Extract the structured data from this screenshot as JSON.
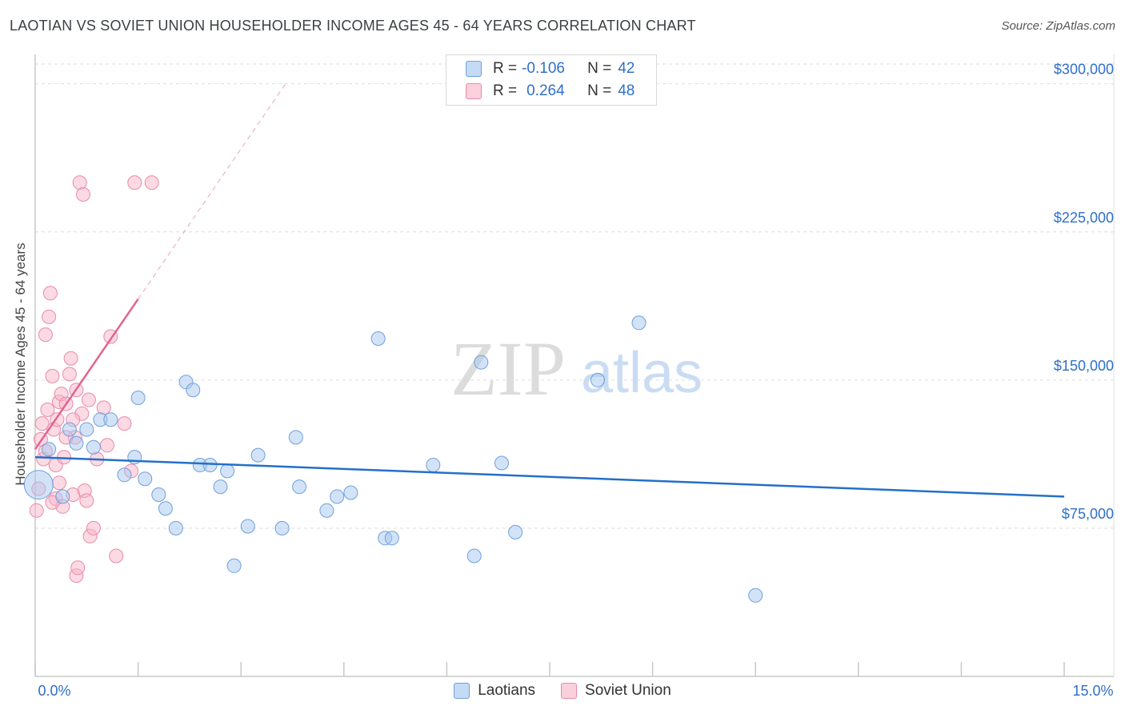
{
  "title": "LAOTIAN VS SOVIET UNION HOUSEHOLDER INCOME AGES 45 - 64 YEARS CORRELATION CHART",
  "source": "Source: ZipAtlas.com",
  "watermark": {
    "zip": "ZIP",
    "atlas": "atlas"
  },
  "colors": {
    "blue_fill": "#a8c8f0",
    "blue_stroke": "#6fa0dc",
    "blue_line": "#2370c8",
    "pink_fill": "#f7b6c9",
    "pink_stroke": "#e98aa8",
    "pink_line": "#e0648f",
    "axis_text": "#2f6fc9",
    "grid": "#dedede"
  },
  "legend": {
    "rows": [
      {
        "r_label": "R =",
        "r_value": "-0.106",
        "n_label": "N =",
        "n_value": "42"
      },
      {
        "r_label": "R =",
        "r_value": "0.264",
        "n_label": "N =",
        "n_value": "48"
      }
    ]
  },
  "bottom_legend": {
    "laotians": "Laotians",
    "soviet": "Soviet Union"
  },
  "chart_data": {
    "type": "scatter",
    "title": "LAOTIAN VS SOVIET UNION HOUSEHOLDER INCOME AGES 45 - 64 YEARS CORRELATION CHART",
    "xlabel": "",
    "ylabel": "Householder Income Ages 45 - 64 years",
    "xlim": [
      0,
      15
    ],
    "ylim": [
      0,
      310000
    ],
    "x_tick_labels": {
      "min": "0.0%",
      "max": "15.0%"
    },
    "y_ticks": [
      {
        "value": 75000,
        "label": "$75,000"
      },
      {
        "value": 150000,
        "label": "$150,000"
      },
      {
        "value": 225000,
        "label": "$225,000"
      },
      {
        "value": 300000,
        "label": "$300,000"
      }
    ],
    "series": [
      {
        "name": "Laotians",
        "color": "blue",
        "r": -0.106,
        "n": 42,
        "trend": {
          "x0": 0.0,
          "y0": 111000,
          "x1": 15.0,
          "y1": 91000
        },
        "points": [
          [
            0.05,
            97000
          ],
          [
            0.2,
            115000
          ],
          [
            0.5,
            125000
          ],
          [
            0.6,
            118000
          ],
          [
            0.75,
            125000
          ],
          [
            0.85,
            116000
          ],
          [
            0.95,
            130000
          ],
          [
            1.1,
            130000
          ],
          [
            1.3,
            102000
          ],
          [
            1.45,
            111000
          ],
          [
            1.5,
            141000
          ],
          [
            1.6,
            100000
          ],
          [
            1.8,
            92000
          ],
          [
            1.9,
            85000
          ],
          [
            2.05,
            75000
          ],
          [
            2.2,
            149000
          ],
          [
            2.3,
            145000
          ],
          [
            2.4,
            107000
          ],
          [
            2.55,
            107000
          ],
          [
            2.7,
            96000
          ],
          [
            2.8,
            104000
          ],
          [
            2.9,
            56000
          ],
          [
            3.1,
            76000
          ],
          [
            3.25,
            112000
          ],
          [
            3.6,
            75000
          ],
          [
            3.8,
            121000
          ],
          [
            3.85,
            96000
          ],
          [
            4.25,
            84000
          ],
          [
            4.4,
            91000
          ],
          [
            4.6,
            93000
          ],
          [
            5.0,
            171000
          ],
          [
            5.1,
            70000
          ],
          [
            5.2,
            70000
          ],
          [
            5.8,
            107000
          ],
          [
            6.4,
            61000
          ],
          [
            6.5,
            159000
          ],
          [
            6.8,
            108000
          ],
          [
            7.0,
            73000
          ],
          [
            8.2,
            150000
          ],
          [
            8.8,
            179000
          ],
          [
            10.5,
            41000
          ],
          [
            0.4,
            91000
          ]
        ]
      },
      {
        "name": "Soviet Union",
        "color": "pink",
        "r": 0.264,
        "n": 48,
        "trend": {
          "x0": 0.0,
          "y0": 115000,
          "x1": 1.5,
          "y1": 191000
        },
        "trend_dashed": {
          "x0": 1.5,
          "y0": 191000,
          "x1": 3.65,
          "y1": 300000
        },
        "points": [
          [
            0.02,
            84000
          ],
          [
            0.05,
            95000
          ],
          [
            0.08,
            120000
          ],
          [
            0.1,
            128000
          ],
          [
            0.12,
            110000
          ],
          [
            0.15,
            173000
          ],
          [
            0.18,
            135000
          ],
          [
            0.2,
            182000
          ],
          [
            0.22,
            194000
          ],
          [
            0.25,
            152000
          ],
          [
            0.27,
            125000
          ],
          [
            0.3,
            107000
          ],
          [
            0.3,
            90000
          ],
          [
            0.32,
            130000
          ],
          [
            0.35,
            139000
          ],
          [
            0.38,
            143000
          ],
          [
            0.4,
            86000
          ],
          [
            0.42,
            111000
          ],
          [
            0.45,
            138000
          ],
          [
            0.5,
            153000
          ],
          [
            0.52,
            161000
          ],
          [
            0.55,
            92000
          ],
          [
            0.58,
            121000
          ],
          [
            0.6,
            51000
          ],
          [
            0.62,
            55000
          ],
          [
            0.65,
            250000
          ],
          [
            0.68,
            133000
          ],
          [
            0.7,
            244000
          ],
          [
            0.72,
            94000
          ],
          [
            0.75,
            89000
          ],
          [
            0.78,
            140000
          ],
          [
            0.8,
            71000
          ],
          [
            0.85,
            75000
          ],
          [
            0.55,
            130000
          ],
          [
            1.0,
            136000
          ],
          [
            1.05,
            117000
          ],
          [
            1.1,
            172000
          ],
          [
            1.18,
            61000
          ],
          [
            1.3,
            128000
          ],
          [
            1.4,
            104000
          ],
          [
            1.45,
            250000
          ],
          [
            1.7,
            250000
          ],
          [
            0.15,
            114000
          ],
          [
            0.35,
            98000
          ],
          [
            0.6,
            145000
          ],
          [
            0.9,
            110000
          ],
          [
            0.25,
            88000
          ],
          [
            0.45,
            121000
          ]
        ]
      }
    ]
  }
}
